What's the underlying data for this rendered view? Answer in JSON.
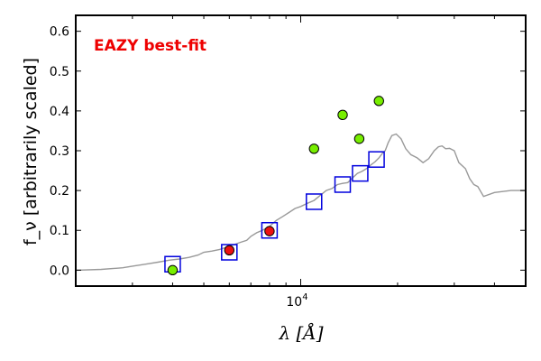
{
  "chart_data": {
    "type": "scatter",
    "title": "",
    "xlabel": "λ [Å]",
    "ylabel": "f_ν [arbitrarily scaled]",
    "xscale": "log",
    "xlim": [
      2000,
      50000
    ],
    "ylim": [
      -0.04,
      0.64
    ],
    "yticks": [
      0.0,
      0.1,
      0.2,
      0.3,
      0.4,
      0.5,
      0.6
    ],
    "ytick_labels": [
      "0.0",
      "0.1",
      "0.2",
      "0.3",
      "0.4",
      "0.5",
      "0.6"
    ],
    "xtick_labels": [
      {
        "value": 10000,
        "base": "10",
        "exponent": "4"
      }
    ],
    "grid": false,
    "annotation": {
      "text": "EAZY best-fit",
      "color": "#ee0000"
    },
    "series": [
      {
        "marker": "line",
        "color": "#999999",
        "x": [
          2000,
          2400,
          2800,
          3000,
          3300,
          3600,
          3900,
          4200,
          4500,
          4800,
          5000,
          5300,
          5600,
          5900,
          6200,
          6500,
          6800,
          7000,
          7300,
          7600,
          8000,
          8400,
          8800,
          9200,
          9600,
          10000,
          10500,
          11000,
          11500,
          12000,
          12500,
          13000,
          13500,
          14000,
          14500,
          15000,
          15500,
          16000,
          16500,
          17000,
          17500,
          18000,
          18300,
          18700,
          19200,
          19800,
          20500,
          21200,
          22000,
          23000,
          24000,
          25000,
          26000,
          26800,
          27500,
          28200,
          29000,
          30000,
          31000,
          32500,
          33500,
          34500,
          35500,
          37000,
          40000,
          45000,
          50000
        ],
        "y": [
          0.0,
          0.002,
          0.006,
          0.01,
          0.015,
          0.02,
          0.025,
          0.028,
          0.032,
          0.038,
          0.045,
          0.048,
          0.052,
          0.058,
          0.064,
          0.07,
          0.075,
          0.085,
          0.094,
          0.1,
          0.11,
          0.125,
          0.135,
          0.145,
          0.155,
          0.16,
          0.168,
          0.175,
          0.188,
          0.2,
          0.205,
          0.215,
          0.218,
          0.22,
          0.232,
          0.243,
          0.248,
          0.255,
          0.264,
          0.272,
          0.282,
          0.295,
          0.3,
          0.32,
          0.338,
          0.342,
          0.33,
          0.305,
          0.29,
          0.282,
          0.27,
          0.28,
          0.3,
          0.31,
          0.312,
          0.305,
          0.306,
          0.3,
          0.27,
          0.255,
          0.23,
          0.215,
          0.21,
          0.185,
          0.195,
          0.2,
          0.2
        ]
      },
      {
        "marker": "square",
        "color": "#0000dd",
        "x": [
          4000,
          6000,
          8000,
          11000,
          13500,
          15300,
          17200
        ],
        "y": [
          0.015,
          0.045,
          0.1,
          0.172,
          0.215,
          0.243,
          0.278
        ]
      },
      {
        "marker": "circle",
        "color": "#ee1111",
        "x": [
          6000,
          8000
        ],
        "y": [
          0.05,
          0.098
        ]
      },
      {
        "marker": "circle",
        "color": "#77ee00",
        "x": [
          4000,
          11000,
          13500,
          15200,
          17500
        ],
        "y": [
          0.0,
          0.305,
          0.39,
          0.33,
          0.425
        ]
      }
    ]
  }
}
